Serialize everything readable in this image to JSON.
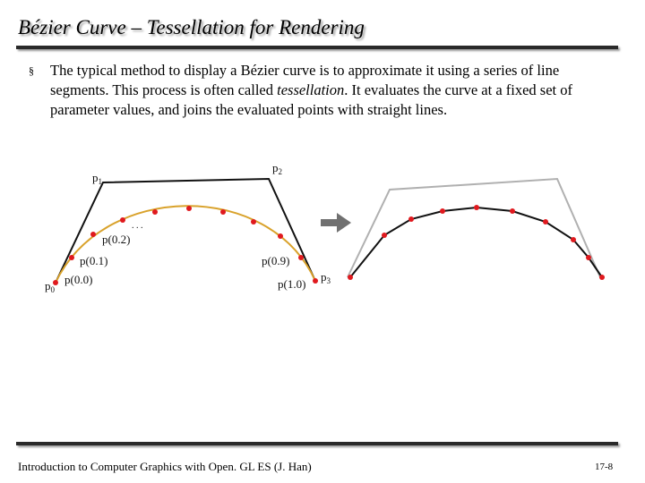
{
  "slide": {
    "title": "Bézier Curve – Tessellation for Rendering",
    "bullet_marker": "§",
    "bullet_text_before": "The typical method to display a Bézier curve is to approximate it using a series of line segments. This process is often called ",
    "bullet_emphasis": "tessellation",
    "bullet_text_after": ". It evaluates the curve at a fixed set of parameter values, and joins the evaluated points with straight lines."
  },
  "figure": {
    "control_points": [
      "p0",
      "p1",
      "p2",
      "p3"
    ],
    "parameter_labels": [
      "p(0.0)",
      "p(0.1)",
      "p(0.2)",
      "p(0.9)",
      "p(1.0)"
    ],
    "ellipsis": ". . .",
    "colors": {
      "control_polygon": "#111111",
      "control_polygon_faded": "#b0b0b0",
      "curve": "#d9a22b",
      "points": "#e0191e",
      "arrow": "#707070"
    }
  },
  "footer": {
    "left": "Introduction to Computer Graphics with Open. GL ES (J. Han)",
    "right": "17-8"
  }
}
